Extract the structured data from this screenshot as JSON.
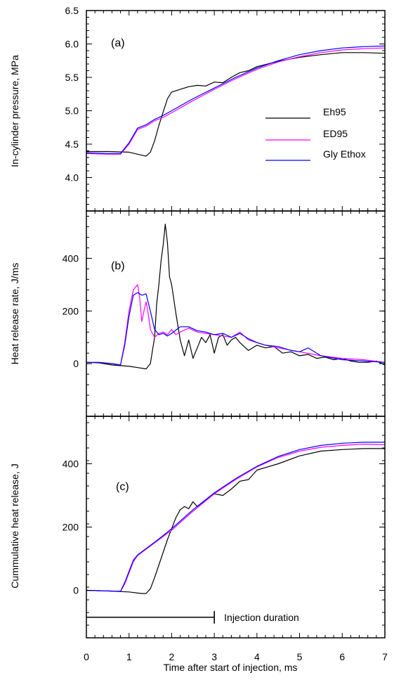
{
  "chart_data": [
    {
      "type": "line",
      "panel_label": "(a)",
      "ylabel": "In-cylinder pressure, MPa",
      "xlim": [
        0,
        7
      ],
      "ylim": [
        3.5,
        6.5
      ],
      "yticks": [
        "4.0",
        "4.5",
        "5.0",
        "5.5",
        "6.0",
        "6.5"
      ],
      "legend": [
        "Eh95",
        "ED95",
        "Gly Ethox"
      ],
      "legend_position": "right",
      "series": [
        {
          "name": "Eh95",
          "color": "#000000",
          "x": [
            0,
            0.5,
            1.0,
            1.2,
            1.4,
            1.5,
            1.6,
            1.7,
            1.8,
            1.9,
            2.0,
            2.2,
            2.4,
            2.6,
            2.8,
            3.0,
            3.2,
            3.4,
            3.6,
            3.8,
            4.0,
            4.5,
            5.0,
            5.5,
            6.0,
            6.5,
            7.0
          ],
          "y": [
            4.39,
            4.39,
            4.38,
            4.35,
            4.32,
            4.38,
            4.55,
            4.78,
            4.98,
            5.18,
            5.28,
            5.32,
            5.36,
            5.38,
            5.37,
            5.43,
            5.42,
            5.5,
            5.57,
            5.6,
            5.66,
            5.74,
            5.8,
            5.84,
            5.87,
            5.87,
            5.86
          ]
        },
        {
          "name": "ED95",
          "color": "#ff00ff",
          "x": [
            0,
            0.5,
            0.8,
            1.0,
            1.2,
            1.4,
            1.6,
            1.8,
            2.0,
            2.5,
            3.0,
            3.5,
            4.0,
            4.5,
            5.0,
            5.5,
            6.0,
            6.5,
            7.0
          ],
          "y": [
            4.36,
            4.35,
            4.35,
            4.5,
            4.72,
            4.77,
            4.85,
            4.9,
            4.97,
            5.15,
            5.32,
            5.48,
            5.62,
            5.73,
            5.81,
            5.87,
            5.91,
            5.93,
            5.94
          ]
        },
        {
          "name": "Gly Ethox",
          "color": "#0000ff",
          "x": [
            0,
            0.5,
            0.8,
            1.0,
            1.2,
            1.4,
            1.6,
            1.8,
            2.0,
            2.5,
            3.0,
            3.5,
            4.0,
            4.5,
            5.0,
            5.5,
            6.0,
            6.5,
            7.0
          ],
          "y": [
            4.37,
            4.36,
            4.36,
            4.52,
            4.74,
            4.79,
            4.87,
            4.93,
            5.0,
            5.18,
            5.34,
            5.5,
            5.64,
            5.75,
            5.84,
            5.9,
            5.94,
            5.96,
            5.97
          ]
        }
      ]
    },
    {
      "type": "line",
      "panel_label": "(b)",
      "ylabel": "Heat release rate, J/ms",
      "xlim": [
        0,
        7
      ],
      "ylim": [
        -200,
        580
      ],
      "yticks": [
        "0",
        "200",
        "400"
      ],
      "series": [
        {
          "name": "Eh95",
          "color": "#000000",
          "x": [
            0,
            0.3,
            0.6,
            1.0,
            1.2,
            1.4,
            1.5,
            1.6,
            1.65,
            1.7,
            1.75,
            1.8,
            1.85,
            1.9,
            1.95,
            2.0,
            2.1,
            2.2,
            2.3,
            2.4,
            2.5,
            2.6,
            2.7,
            2.8,
            2.9,
            3.0,
            3.1,
            3.2,
            3.3,
            3.4,
            3.5,
            3.6,
            3.8,
            4.0,
            4.2,
            4.4,
            4.6,
            4.8,
            5.0,
            5.2,
            5.4,
            5.6,
            5.8,
            6.0,
            6.2,
            6.4,
            6.6,
            6.8,
            7.0
          ],
          "y": [
            5,
            3,
            -5,
            -10,
            -15,
            -20,
            0,
            100,
            230,
            300,
            390,
            450,
            530,
            460,
            330,
            300,
            190,
            90,
            30,
            90,
            20,
            60,
            100,
            80,
            110,
            40,
            100,
            110,
            70,
            90,
            100,
            80,
            50,
            70,
            60,
            65,
            40,
            45,
            30,
            35,
            20,
            25,
            15,
            20,
            10,
            5,
            5,
            10,
            -5
          ]
        },
        {
          "name": "ED95",
          "color": "#ff00ff",
          "x": [
            0,
            0.3,
            0.6,
            0.8,
            0.9,
            1.0,
            1.1,
            1.2,
            1.25,
            1.3,
            1.35,
            1.4,
            1.45,
            1.5,
            1.6,
            1.7,
            1.8,
            1.9,
            2.0,
            2.1,
            2.2,
            2.4,
            2.6,
            2.8,
            3.0,
            3.2,
            3.4,
            3.6,
            3.8,
            4.0,
            4.2,
            4.5,
            5.0,
            5.5,
            6.0,
            6.5,
            7.0
          ],
          "y": [
            5,
            5,
            0,
            -5,
            80,
            200,
            280,
            300,
            250,
            160,
            200,
            235,
            190,
            130,
            100,
            115,
            120,
            110,
            130,
            110,
            120,
            135,
            120,
            115,
            110,
            105,
            100,
            120,
            90,
            80,
            70,
            60,
            45,
            30,
            20,
            15,
            5
          ]
        },
        {
          "name": "Gly Ethox",
          "color": "#0000ff",
          "x": [
            0,
            0.3,
            0.6,
            0.8,
            0.9,
            1.0,
            1.1,
            1.2,
            1.3,
            1.4,
            1.5,
            1.6,
            1.7,
            1.8,
            1.9,
            2.0,
            2.2,
            2.4,
            2.6,
            2.8,
            3.0,
            3.2,
            3.4,
            3.6,
            3.8,
            4.0,
            4.2,
            4.5,
            4.8,
            5.0,
            5.2,
            5.5,
            6.0,
            6.5,
            7.0
          ],
          "y": [
            5,
            5,
            0,
            -5,
            70,
            180,
            260,
            270,
            260,
            265,
            200,
            130,
            110,
            115,
            105,
            115,
            140,
            140,
            125,
            120,
            110,
            115,
            100,
            115,
            95,
            80,
            70,
            65,
            50,
            45,
            60,
            30,
            15,
            10,
            5
          ]
        }
      ]
    },
    {
      "type": "line",
      "panel_label": "(c)",
      "ylabel": "Cummulative heat release, J",
      "xlabel": "Time after start of injection, ms",
      "xlim": [
        0,
        7
      ],
      "ylim": [
        -150,
        550
      ],
      "xticks": [
        "0",
        "1",
        "2",
        "3",
        "4",
        "5",
        "6",
        "7"
      ],
      "yticks": [
        "0",
        "200",
        "400"
      ],
      "annotation": {
        "text": "Injection duration",
        "x_start": 0,
        "x_end": 3,
        "y": -85
      },
      "series": [
        {
          "name": "Eh95",
          "color": "#000000",
          "x": [
            0,
            0.5,
            1.0,
            1.3,
            1.4,
            1.5,
            1.6,
            1.7,
            1.8,
            1.9,
            2.0,
            2.1,
            2.2,
            2.3,
            2.4,
            2.5,
            2.6,
            2.8,
            3.0,
            3.2,
            3.4,
            3.6,
            3.8,
            4.0,
            4.5,
            5.0,
            5.5,
            6.0,
            6.5,
            7.0
          ],
          "y": [
            0,
            -2,
            -5,
            -10,
            -10,
            5,
            40,
            80,
            120,
            160,
            195,
            230,
            255,
            265,
            258,
            280,
            265,
            285,
            305,
            300,
            320,
            345,
            350,
            380,
            400,
            425,
            440,
            445,
            448,
            448
          ]
        },
        {
          "name": "ED95",
          "color": "#ff00ff",
          "x": [
            0,
            0.5,
            0.8,
            0.9,
            1.0,
            1.1,
            1.2,
            1.4,
            1.6,
            1.8,
            2.0,
            2.5,
            3.0,
            3.5,
            4.0,
            4.5,
            5.0,
            5.5,
            6.0,
            6.5,
            7.0
          ],
          "y": [
            0,
            -2,
            -3,
            20,
            55,
            90,
            110,
            130,
            150,
            170,
            190,
            250,
            305,
            350,
            390,
            420,
            440,
            452,
            458,
            462,
            460
          ]
        },
        {
          "name": "Gly Ethox",
          "color": "#0000ff",
          "x": [
            0,
            0.5,
            0.8,
            0.9,
            1.0,
            1.1,
            1.2,
            1.4,
            1.6,
            1.8,
            2.0,
            2.5,
            3.0,
            3.5,
            4.0,
            4.5,
            5.0,
            5.5,
            6.0,
            6.5,
            7.0
          ],
          "y": [
            0,
            -2,
            -3,
            25,
            60,
            95,
            112,
            132,
            152,
            173,
            195,
            255,
            308,
            353,
            392,
            423,
            445,
            458,
            465,
            468,
            468
          ]
        }
      ]
    }
  ]
}
